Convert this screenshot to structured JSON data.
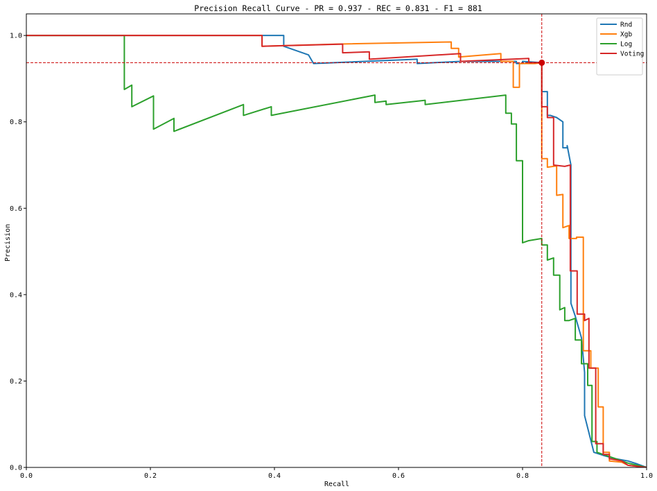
{
  "chart_data": {
    "type": "line",
    "title": "Precision Recall Curve - PR = 0.937 - REC = 0.831 - F1 = 881",
    "xlabel": "Recall",
    "ylabel": "Precision",
    "xlim": [
      0,
      1
    ],
    "ylim": [
      0,
      1.05
    ],
    "xticks": [
      "0.0",
      "0.2",
      "0.4",
      "0.6",
      "0.8",
      "1.0"
    ],
    "xtick_values": [
      0,
      0.2,
      0.4,
      0.6,
      0.8,
      1.0
    ],
    "yticks": [
      "0.0",
      "0.2",
      "0.4",
      "0.6",
      "0.8",
      "1.0"
    ],
    "ytick_values": [
      0,
      0.2,
      0.4,
      0.6,
      0.8,
      1.0
    ],
    "grid": false,
    "legend_position": "top-right",
    "reference_lines": {
      "x": 0.831,
      "y": 0.937,
      "color": "#cc0000",
      "style": "dashed"
    },
    "marker_point": {
      "x": 0.831,
      "y": 0.937,
      "color": "#cc0000"
    },
    "series": [
      {
        "name": "Rnd",
        "color": "#1f77b4",
        "x": [
          0,
          0.38,
          0.415,
          0.415,
          0.455,
          0.463,
          0.463,
          0.63,
          0.63,
          0.7,
          0.79,
          0.79,
          0.8,
          0.8,
          0.831,
          0.831,
          0.84,
          0.84,
          0.845,
          0.855,
          0.865,
          0.865,
          0.872,
          0.872,
          0.878,
          0.878,
          0.885,
          0.895,
          0.9,
          0.9,
          0.915,
          0.93,
          0.95,
          0.97,
          0.985,
          1.0
        ],
        "y": [
          1.0,
          1.0,
          1.0,
          0.975,
          0.955,
          0.935,
          0.935,
          0.945,
          0.935,
          0.94,
          0.94,
          0.935,
          0.935,
          0.94,
          0.937,
          0.87,
          0.87,
          0.815,
          0.815,
          0.81,
          0.8,
          0.74,
          0.74,
          0.745,
          0.7,
          0.38,
          0.35,
          0.3,
          0.22,
          0.12,
          0.035,
          0.028,
          0.02,
          0.015,
          0.008,
          0.0
        ]
      },
      {
        "name": "Xgb",
        "color": "#ff7f0e",
        "x": [
          0,
          0.38,
          0.38,
          0.5,
          0.685,
          0.685,
          0.697,
          0.697,
          0.765,
          0.765,
          0.785,
          0.785,
          0.795,
          0.795,
          0.82,
          0.831,
          0.831,
          0.84,
          0.84,
          0.855,
          0.855,
          0.865,
          0.865,
          0.875,
          0.875,
          0.887,
          0.887,
          0.898,
          0.898,
          0.91,
          0.91,
          0.922,
          0.922,
          0.93,
          0.93,
          0.94,
          0.94,
          0.96,
          0.97,
          1.0
        ],
        "y": [
          1.0,
          1.0,
          0.975,
          0.98,
          0.985,
          0.97,
          0.97,
          0.95,
          0.958,
          0.94,
          0.94,
          0.88,
          0.88,
          0.935,
          0.935,
          0.937,
          0.715,
          0.715,
          0.695,
          0.698,
          0.63,
          0.632,
          0.555,
          0.56,
          0.53,
          0.53,
          0.533,
          0.533,
          0.27,
          0.27,
          0.23,
          0.23,
          0.14,
          0.14,
          0.035,
          0.035,
          0.015,
          0.012,
          0.005,
          0.0
        ]
      },
      {
        "name": "Log",
        "color": "#2ca02c",
        "x": [
          0,
          0.158,
          0.158,
          0.17,
          0.17,
          0.205,
          0.205,
          0.238,
          0.238,
          0.35,
          0.35,
          0.395,
          0.395,
          0.562,
          0.562,
          0.58,
          0.58,
          0.643,
          0.643,
          0.773,
          0.773,
          0.782,
          0.782,
          0.79,
          0.79,
          0.795,
          0.795,
          0.8,
          0.8,
          0.81,
          0.81,
          0.831,
          0.831,
          0.84,
          0.84,
          0.85,
          0.85,
          0.86,
          0.86,
          0.868,
          0.868,
          0.875,
          0.875,
          0.885,
          0.885,
          0.895,
          0.895,
          0.905,
          0.905,
          0.912,
          0.912,
          0.92,
          0.92,
          0.93,
          0.95,
          0.97,
          1.0
        ],
        "y": [
          1.0,
          1.0,
          0.875,
          0.885,
          0.835,
          0.86,
          0.783,
          0.808,
          0.778,
          0.84,
          0.815,
          0.835,
          0.815,
          0.862,
          0.845,
          0.848,
          0.84,
          0.85,
          0.84,
          0.862,
          0.82,
          0.82,
          0.795,
          0.795,
          0.71,
          0.71,
          0.71,
          0.71,
          0.52,
          0.525,
          0.525,
          0.53,
          0.515,
          0.515,
          0.48,
          0.485,
          0.445,
          0.445,
          0.365,
          0.37,
          0.34,
          0.34,
          0.34,
          0.345,
          0.295,
          0.295,
          0.24,
          0.24,
          0.19,
          0.19,
          0.06,
          0.06,
          0.035,
          0.03,
          0.02,
          0.01,
          0.0
        ]
      },
      {
        "name": "Voting",
        "color": "#d62728",
        "x": [
          0,
          0.38,
          0.38,
          0.51,
          0.51,
          0.553,
          0.553,
          0.7,
          0.7,
          0.81,
          0.81,
          0.831,
          0.831,
          0.84,
          0.84,
          0.85,
          0.85,
          0.868,
          0.868,
          0.877,
          0.877,
          0.888,
          0.888,
          0.9,
          0.9,
          0.907,
          0.907,
          0.918,
          0.918,
          0.93,
          0.93,
          0.94,
          0.94,
          0.96,
          0.97,
          1.0
        ],
        "y": [
          1.0,
          1.0,
          0.975,
          0.98,
          0.96,
          0.962,
          0.945,
          0.958,
          0.94,
          0.947,
          0.937,
          0.937,
          0.835,
          0.835,
          0.81,
          0.81,
          0.7,
          0.697,
          0.697,
          0.7,
          0.455,
          0.455,
          0.355,
          0.355,
          0.34,
          0.345,
          0.23,
          0.23,
          0.055,
          0.055,
          0.03,
          0.03,
          0.02,
          0.015,
          0.005,
          0.0
        ]
      }
    ]
  }
}
